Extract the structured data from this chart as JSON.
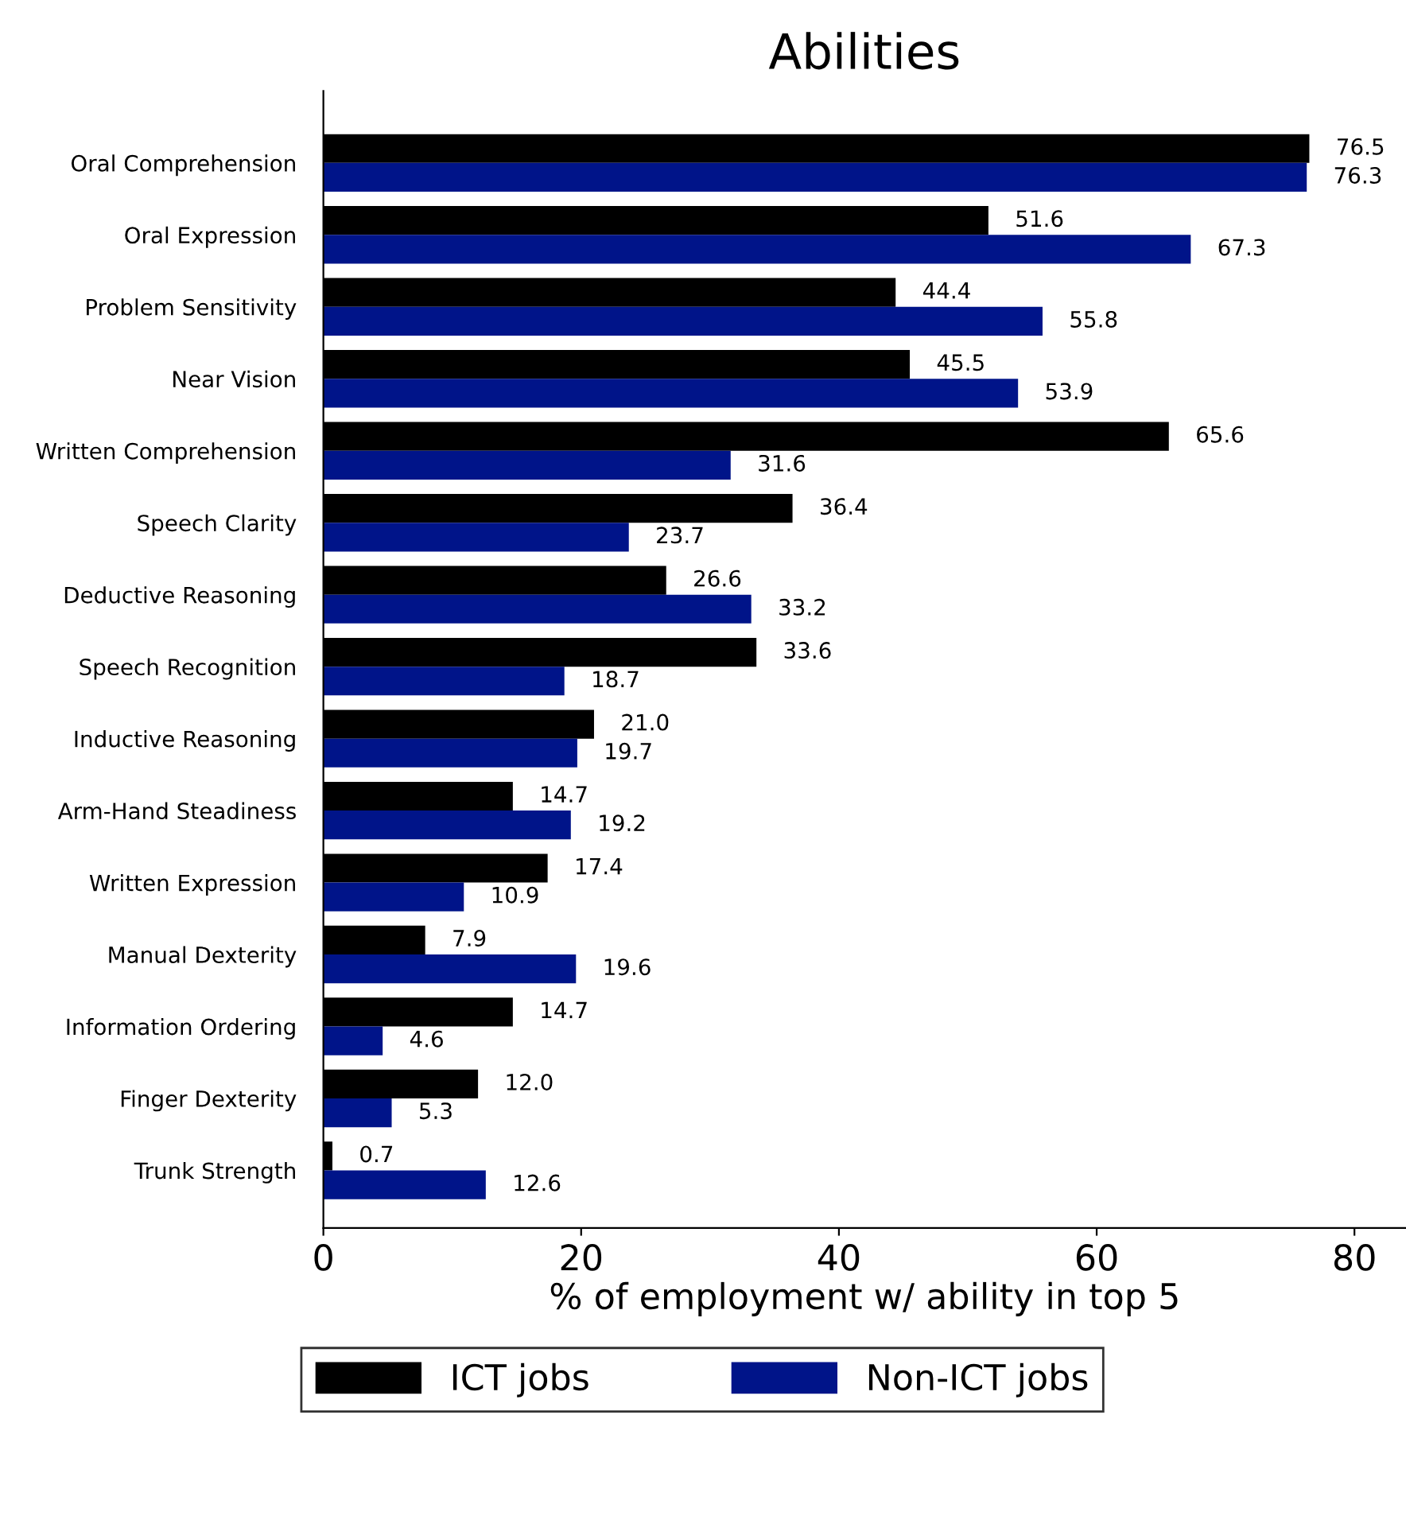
{
  "chart_data": {
    "type": "bar",
    "orientation": "horizontal",
    "title": "Abilities",
    "xlabel": "% of employment w/ ability in top 5",
    "categories": [
      "Oral Comprehension",
      "Oral Expression",
      "Problem Sensitivity",
      "Near Vision",
      "Written Comprehension",
      "Speech Clarity",
      "Deductive Reasoning",
      "Speech Recognition",
      "Inductive Reasoning",
      "Arm-Hand Steadiness",
      "Written Expression",
      "Manual Dexterity",
      "Information Ordering",
      "Finger Dexterity",
      "Trunk Strength"
    ],
    "series": [
      {
        "name": "ICT jobs",
        "color": "#000000",
        "values": [
          76.5,
          51.6,
          44.4,
          45.5,
          65.6,
          36.4,
          26.6,
          33.6,
          21.0,
          14.7,
          17.4,
          7.9,
          14.7,
          12.0,
          0.7
        ],
        "value_labels": [
          "76.5",
          "51.6",
          "44.4",
          "45.5",
          "65.6",
          "36.4",
          "26.6",
          "33.6",
          "21.0",
          "14.7",
          "17.4",
          "7.9",
          "14.7",
          "12.0",
          "0.7"
        ]
      },
      {
        "name": "Non-ICT jobs",
        "color": "#001489",
        "values": [
          76.3,
          67.3,
          55.8,
          53.9,
          31.6,
          23.7,
          33.2,
          18.7,
          19.7,
          19.2,
          10.9,
          19.6,
          4.6,
          5.3,
          12.6
        ],
        "value_labels": [
          "76.3",
          "67.3",
          "55.8",
          "53.9",
          "31.6",
          "23.7",
          "33.2",
          "18.7",
          "19.7",
          "19.2",
          "10.9",
          "19.6",
          "4.6",
          "5.3",
          "12.6"
        ]
      }
    ],
    "xlim": [
      0,
      84
    ],
    "xticks": [
      0,
      20,
      40,
      60,
      80
    ],
    "grid": false,
    "legend": "bottom"
  }
}
